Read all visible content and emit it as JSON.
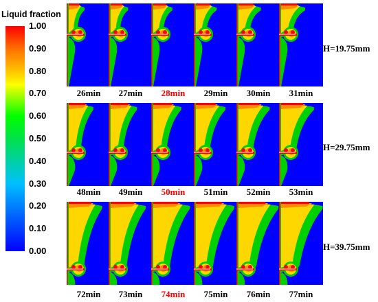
{
  "colorbar": {
    "title": "Liquid fraction",
    "ticks": [
      "1.00",
      "0.90",
      "0.80",
      "0.70",
      "0.60",
      "0.50",
      "0.40",
      "0.30",
      "0.20",
      "0.10",
      "0.00"
    ],
    "gradient_colors": [
      "#0000ff",
      "#00bfff",
      "#00e14a",
      "#00ff00",
      "#ffff00",
      "#ffc400",
      "#ff7000",
      "#ff0000"
    ]
  },
  "rows": [
    {
      "height_label": "H=19.75mm",
      "times": [
        "26min",
        "27min",
        "28min",
        "29min",
        "30min",
        "31min"
      ],
      "highlight_index": 2
    },
    {
      "height_label": "H=29.75mm",
      "times": [
        "48min",
        "49min",
        "50min",
        "51min",
        "52min",
        "53min"
      ],
      "highlight_index": 2
    },
    {
      "height_label": "H=39.75mm",
      "times": [
        "72min",
        "73min",
        "74min",
        "75min",
        "76min",
        "77min"
      ],
      "highlight_index": 2
    }
  ],
  "colors": {
    "solid": "#0000ff",
    "liquid": "#ff0000",
    "mush_high": "#ff8c00",
    "mush_mid": "#ffd700",
    "mush_low": "#00d000",
    "highlight_text": "#ff0000"
  }
}
